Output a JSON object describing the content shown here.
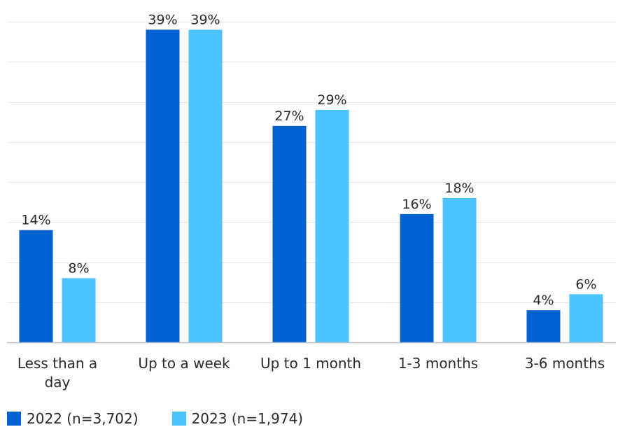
{
  "chart_data": {
    "type": "bar",
    "title": "",
    "xlabel": "",
    "ylabel": "",
    "ylim": [
      0,
      40
    ],
    "grid": true,
    "legend_position": "bottom-left",
    "categories": [
      [
        "Less than a",
        "day"
      ],
      [
        "Up to a week"
      ],
      [
        "Up to 1 month"
      ],
      [
        "1-3 months"
      ],
      [
        "3-6 months"
      ]
    ],
    "series": [
      {
        "name": "2022 (n=3,702)",
        "color": "#0061D1",
        "values": [
          14,
          39,
          27,
          16,
          4
        ],
        "labels": [
          "14%",
          "39%",
          "27%",
          "16%",
          "4%"
        ]
      },
      {
        "name": "2023 (n=1,974)",
        "color": "#4CC4FF",
        "values": [
          8,
          39,
          29,
          18,
          6
        ],
        "labels": [
          "8%",
          "39%",
          "29%",
          "18%",
          "6%"
        ]
      }
    ]
  }
}
